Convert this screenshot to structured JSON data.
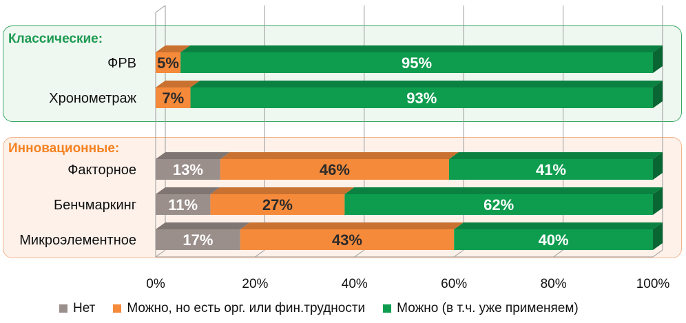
{
  "groups": [
    {
      "title": "Классические:",
      "color": "#1d9a52",
      "fill": "#eef7f0",
      "border": "#3aa865"
    },
    {
      "title": "Инновационные:",
      "color": "#f58220",
      "fill": "#fdf1ea",
      "border": "#f3b48a"
    }
  ],
  "legend": [
    {
      "label": "Нет",
      "color": "#9b8f8b"
    },
    {
      "label": "Можно, но есть орг. или фин.трудности",
      "color": "#f58a3a"
    },
    {
      "label": "Можно (в т.ч. уже применяем)",
      "color": "#0e9d4f"
    }
  ],
  "chart_data": {
    "type": "bar",
    "orientation": "horizontal",
    "stacked": true,
    "percent": true,
    "categories": [
      "ФРВ",
      "Хронометраж",
      "Факторное",
      "Бенчмаркинг",
      "Микроэлементное"
    ],
    "series": [
      {
        "name": "Нет",
        "color": "#9b8f8b",
        "values": [
          0,
          0,
          13,
          11,
          17
        ]
      },
      {
        "name": "Можно, но есть орг. или фин.трудности",
        "color": "#f58a3a",
        "values": [
          5,
          7,
          46,
          27,
          43
        ]
      },
      {
        "name": "Можно (в т.ч. уже применяем)",
        "color": "#0e9d4f",
        "values": [
          95,
          93,
          41,
          62,
          40
        ]
      }
    ],
    "data_labels": [
      [
        "",
        "5%",
        "95%"
      ],
      [
        "",
        "7%",
        "93%"
      ],
      [
        "13%",
        "46%",
        "41%"
      ],
      [
        "11%",
        "27%",
        "62%"
      ],
      [
        "17%",
        "43%",
        "40%"
      ]
    ],
    "xticks": [
      "0%",
      "20%",
      "40%",
      "60%",
      "80%",
      "100%"
    ],
    "xlim": [
      0,
      100
    ],
    "grid": true,
    "legend_position": "bottom"
  }
}
